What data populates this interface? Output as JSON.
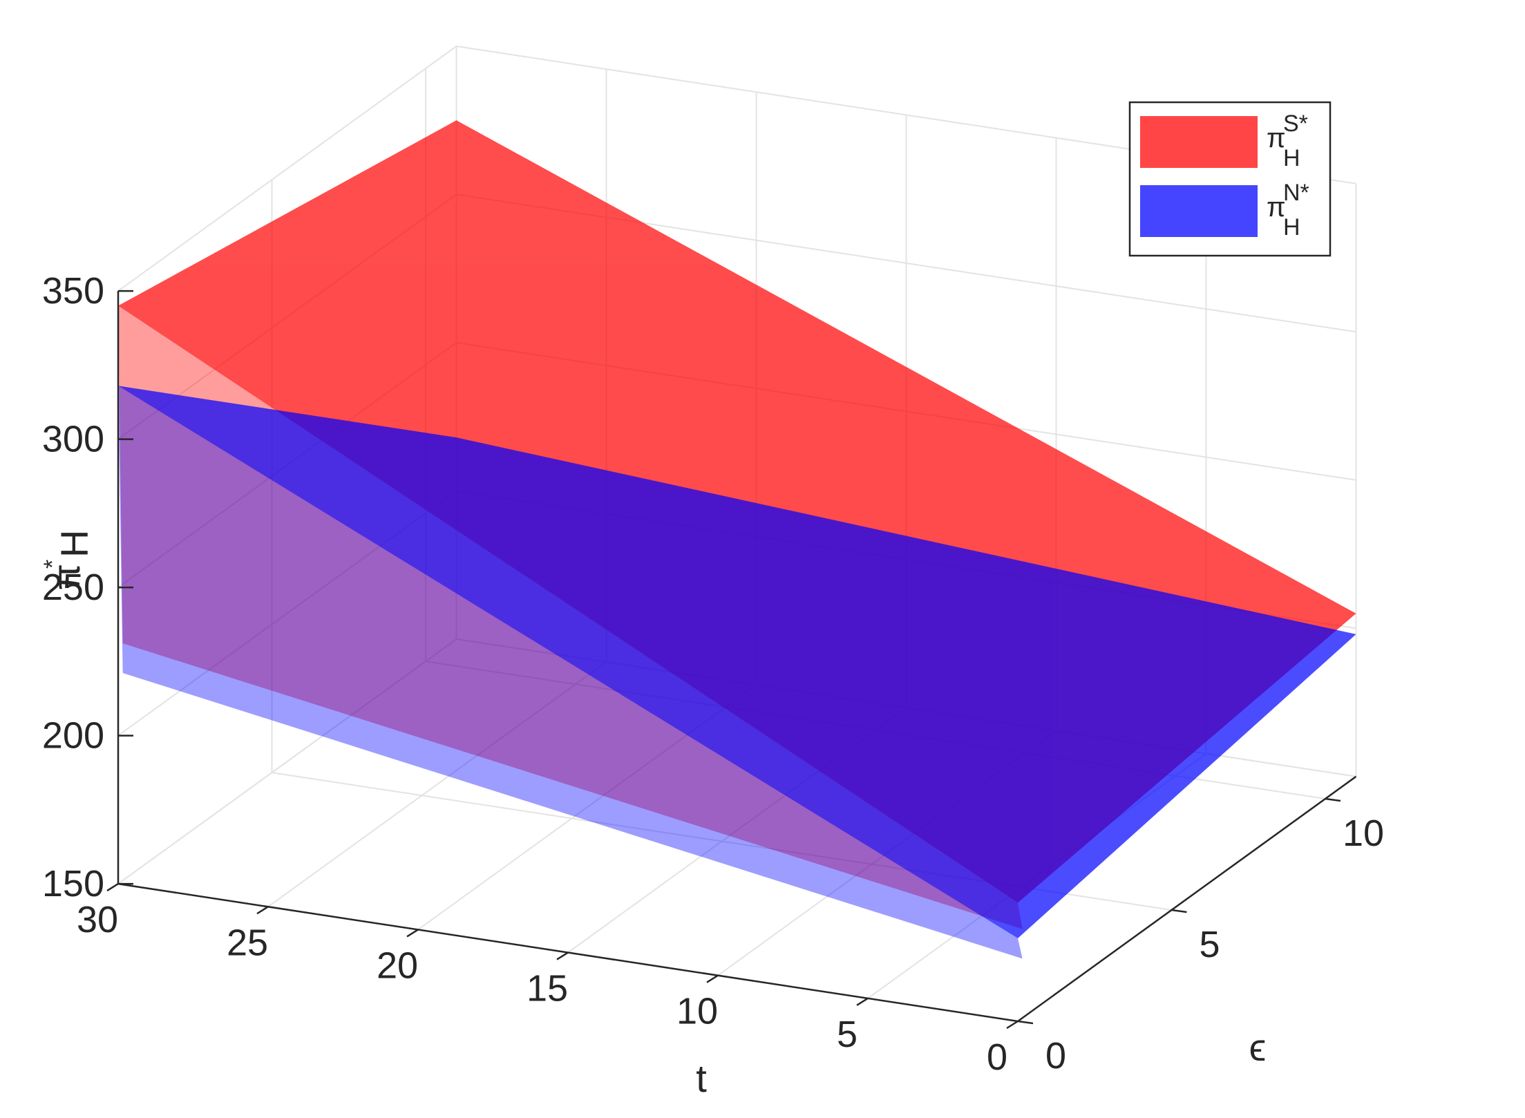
{
  "chart_data": {
    "type": "surface",
    "title": "",
    "xlabel": "t",
    "ylabel": "ϵ",
    "zlabel": {
      "symbol": "π",
      "superscript": "*",
      "subscript": "H"
    },
    "xlim": [
      0,
      30
    ],
    "ylim": [
      0,
      11
    ],
    "zlim": [
      150,
      350
    ],
    "x_ticks": [
      0,
      5,
      10,
      15,
      20,
      25,
      30
    ],
    "y_ticks": [
      0,
      5,
      10
    ],
    "z_ticks": [
      150,
      200,
      250,
      300,
      350
    ],
    "grid": true,
    "view": "3-D perspective, t increases toward the left, ϵ increases toward the back-right",
    "legend": {
      "location": "top-right",
      "items": [
        {
          "symbol": "π",
          "superscript": "S*",
          "subscript": "H",
          "color": "#ff3b3b"
        },
        {
          "symbol": "π",
          "superscript": "N*",
          "subscript": "H",
          "color": "#3b3bff"
        }
      ]
    },
    "series": [
      {
        "id": "S",
        "color": "#ff0000",
        "opacity": 0.7,
        "description": "red surface",
        "corners": [
          {
            "t": 30,
            "eps": 0,
            "z": 345
          },
          {
            "t": 0,
            "eps": 0,
            "z": 190
          },
          {
            "t": 30,
            "eps": 11,
            "z": 325
          },
          {
            "t": 0,
            "eps": 11,
            "z": 205
          }
        ],
        "eps0_edge_shape": "ends at about 190 at t = 0 and rises to 345 at t = 30"
      },
      {
        "id": "N",
        "color": "#0000ff",
        "opacity": 0.7,
        "description": "blue surface",
        "corners": [
          {
            "t": 30,
            "eps": 0,
            "z": 318
          },
          {
            "t": 0,
            "eps": 0,
            "z": 178
          },
          {
            "t": 30,
            "eps": 11,
            "z": 218
          },
          {
            "t": 0,
            "eps": 11,
            "z": 198
          }
        ],
        "eps0_edge_shape": "ends at about 178 at t = 0 and rises to 318 at t = 30"
      }
    ]
  }
}
